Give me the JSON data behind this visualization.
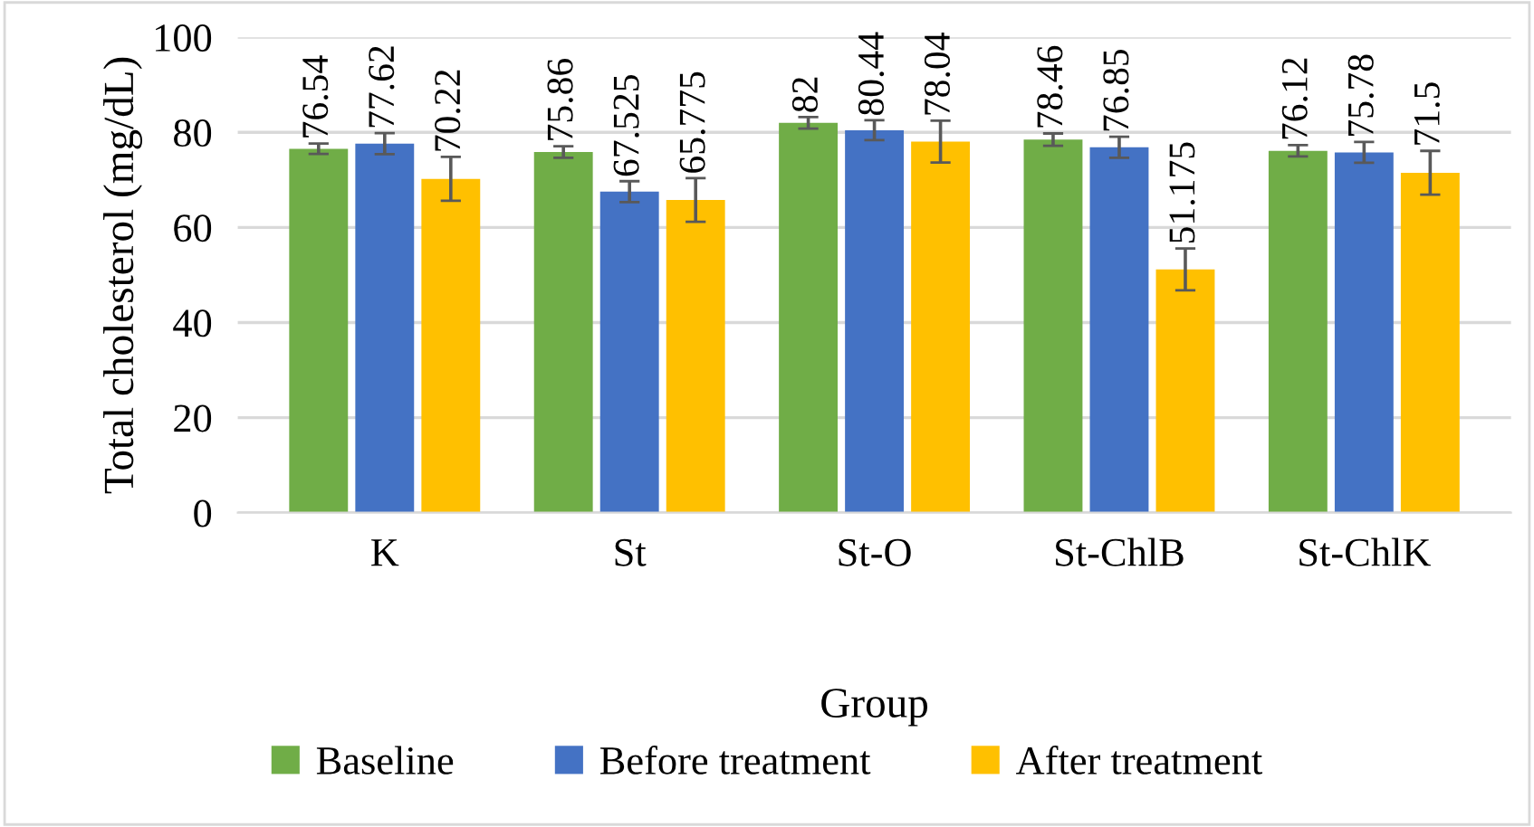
{
  "chart_data": {
    "type": "bar",
    "xlabel": "Group",
    "ylabel": "Total cholesterol (mg/dL)",
    "categories": [
      "K",
      "St",
      "St-O",
      "St-ChlB",
      "St-ChlK"
    ],
    "series": [
      {
        "name": "Baseline",
        "color": "#70ad47",
        "values": [
          76.54,
          75.86,
          82,
          78.46,
          76.12
        ],
        "errors": [
          1.1,
          1.2,
          1.2,
          1.3,
          1.2
        ]
      },
      {
        "name": "Before treatment",
        "color": "#4472c4",
        "values": [
          77.62,
          67.525,
          80.44,
          76.85,
          75.78
        ],
        "errors": [
          2.2,
          2.2,
          2.1,
          2.2,
          2.2
        ]
      },
      {
        "name": "After treatment",
        "color": "#ffc000",
        "values": [
          70.22,
          65.775,
          78.04,
          51.175,
          71.5
        ],
        "errors": [
          4.6,
          4.6,
          4.4,
          4.4,
          4.6
        ]
      }
    ],
    "ylim": [
      0,
      100
    ],
    "yticks": [
      0,
      20,
      40,
      60,
      80,
      100
    ],
    "grid": "y",
    "legend": "bottom",
    "data_labels": true
  }
}
